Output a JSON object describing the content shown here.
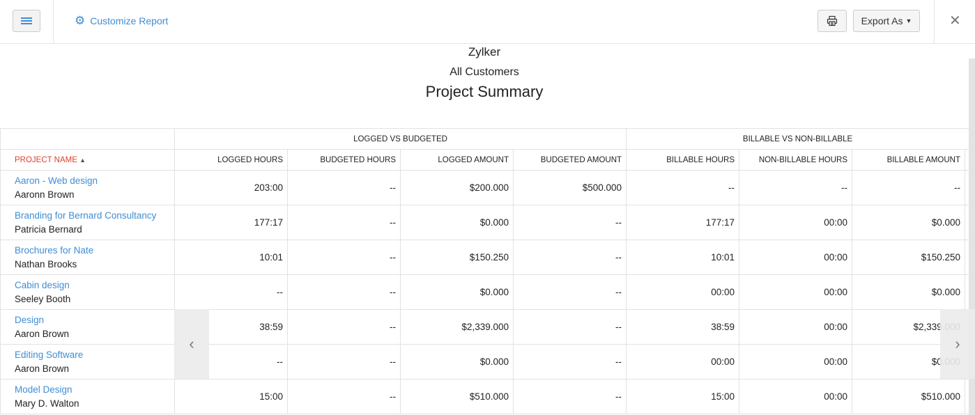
{
  "toolbar": {
    "customize_label": "Customize Report",
    "export_label": "Export As"
  },
  "report": {
    "org": "Zylker",
    "filter": "All Customers",
    "title": "Project Summary"
  },
  "table": {
    "groups": [
      "LOGGED VS BUDGETED",
      "BILLABLE VS NON-BILLABLE"
    ],
    "columns": [
      "PROJECT NAME",
      "LOGGED HOURS",
      "BUDGETED HOURS",
      "LOGGED AMOUNT",
      "BUDGETED AMOUNT",
      "BILLABLE HOURS",
      "NON-BILLABLE HOURS",
      "BILLABLE AMOUNT"
    ],
    "rows": [
      {
        "project": "Aaron - Web design",
        "customer": "Aaronn Brown",
        "cells": [
          "203:00",
          "--",
          "$200.000",
          "$500.000",
          "--",
          "--",
          "--"
        ]
      },
      {
        "project": "Branding for Bernard Consultancy",
        "customer": "Patricia Bernard",
        "cells": [
          "177:17",
          "--",
          "$0.000",
          "--",
          "177:17",
          "00:00",
          "$0.000"
        ]
      },
      {
        "project": "Brochures for Nate",
        "customer": "Nathan Brooks",
        "cells": [
          "10:01",
          "--",
          "$150.250",
          "--",
          "10:01",
          "00:00",
          "$150.250"
        ]
      },
      {
        "project": "Cabin design",
        "customer": "Seeley Booth",
        "cells": [
          "--",
          "--",
          "$0.000",
          "--",
          "00:00",
          "00:00",
          "$0.000"
        ]
      },
      {
        "project": "Design",
        "customer": "Aaron Brown",
        "cells": [
          "38:59",
          "--",
          "$2,339.000",
          "--",
          "38:59",
          "00:00",
          "$2,339.000"
        ]
      },
      {
        "project": "Editing Software",
        "customer": "Aaron Brown",
        "cells": [
          "--",
          "--",
          "$0.000",
          "--",
          "00:00",
          "00:00",
          "$0.000"
        ]
      },
      {
        "project": "Model Design",
        "customer": "Mary D. Walton",
        "cells": [
          "15:00",
          "--",
          "$510.000",
          "--",
          "15:00",
          "00:00",
          "$510.000"
        ]
      }
    ]
  }
}
